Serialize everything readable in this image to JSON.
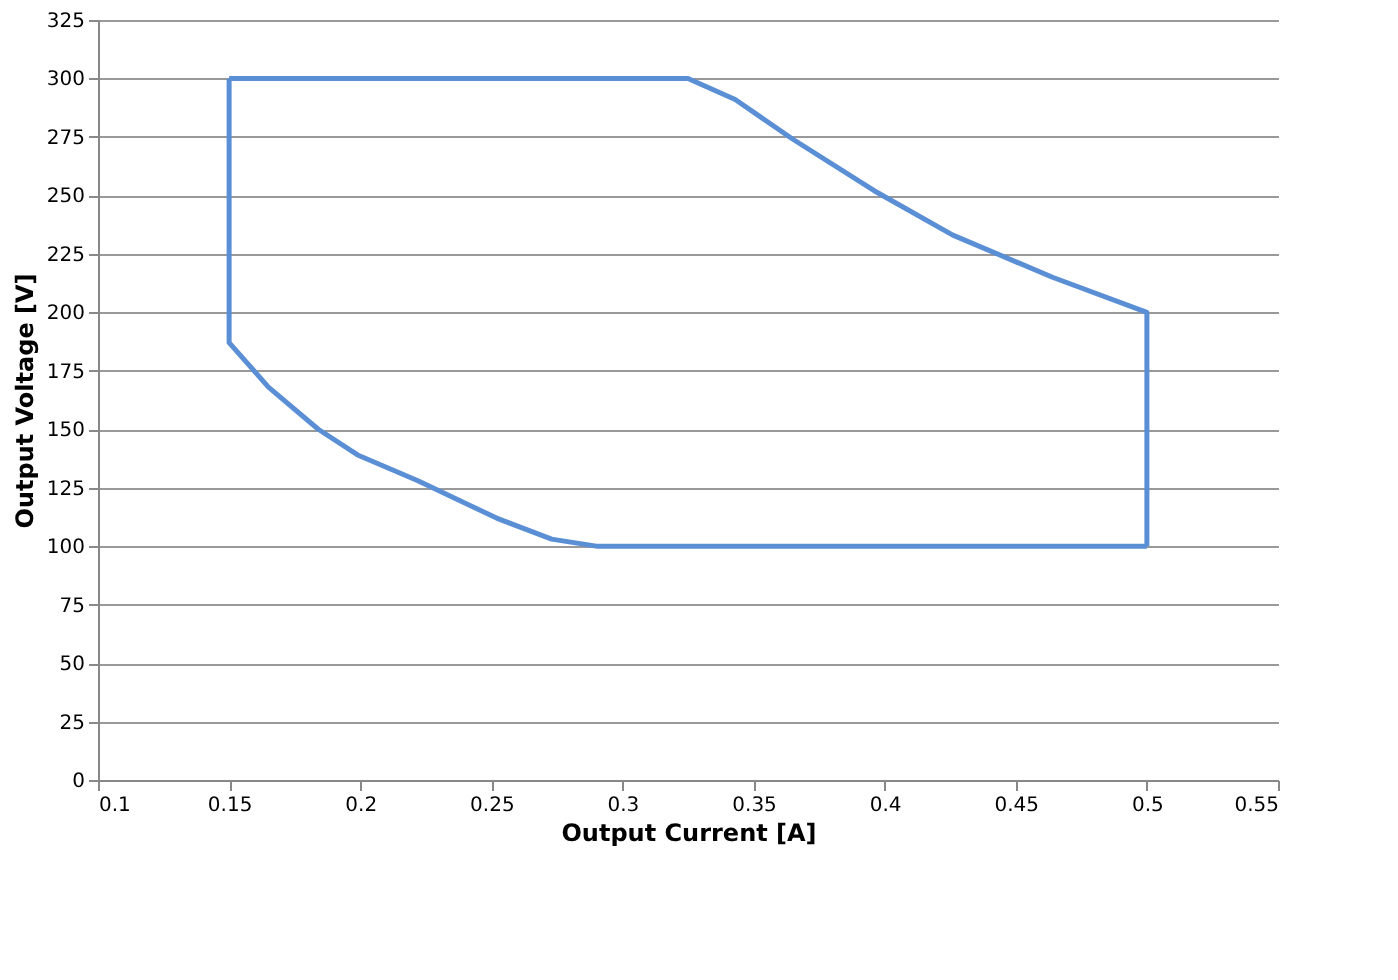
{
  "chart_data": {
    "type": "line",
    "xlabel": "Output Current [A]",
    "ylabel": "Output Voltage [V]",
    "series": [
      {
        "color": "#5b8fd5",
        "x": [
          0.15,
          0.325,
          0.343,
          0.365,
          0.396,
          0.426,
          0.464,
          0.5,
          0.5
        ],
        "values": [
          300,
          300,
          291,
          274,
          252,
          233,
          215,
          200,
          100
        ]
      },
      {
        "color": "#5b8fd5",
        "x": [
          0.15,
          0.15,
          0.165,
          0.184,
          0.199,
          0.222,
          0.252,
          0.273,
          0.29,
          0.5
        ],
        "values": [
          300,
          187,
          168,
          150,
          139,
          128,
          112,
          103,
          100,
          100
        ]
      }
    ],
    "xlim": [
      0.1,
      0.55
    ],
    "xticks": [
      {
        "value": 0.1,
        "label": "0.1"
      },
      0.15,
      {
        "value": 0.2,
        "label": "0.2"
      },
      0.25,
      {
        "value": 0.3,
        "label": "0.3"
      },
      0.35,
      {
        "value": 0.4,
        "label": "0.4"
      },
      0.45,
      {
        "value": 0.5,
        "label": "0.5"
      },
      0.55
    ],
    "ylim": [
      0,
      325
    ],
    "yticks": [
      0,
      25,
      50,
      75,
      100,
      125,
      150,
      175,
      200,
      225,
      250,
      275,
      300,
      325
    ],
    "grid": "y",
    "legend": false,
    "marker": "none",
    "line_style": "solid"
  }
}
